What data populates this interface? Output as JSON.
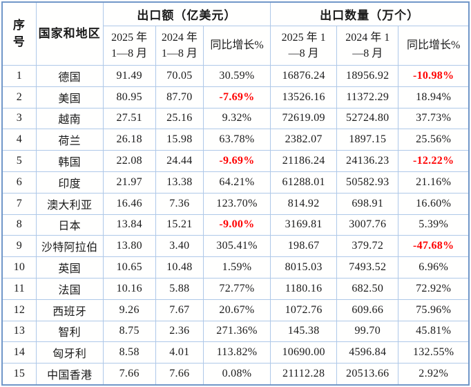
{
  "colors": {
    "outer_border": "#7096C8",
    "inner_border": "#AEC8E8",
    "text": "#1a1a1a",
    "negative_value": "#FF0000",
    "background": "#ffffff"
  },
  "chart_data": {
    "type": "table",
    "title": "",
    "header": {
      "serial": "序\n号",
      "country": "国家和地区",
      "group_export_value": "出口额（亿美元）",
      "group_export_quantity": "出口数量（万个）",
      "sub_value_2025": "2025 年\n1—8 月",
      "sub_value_2024": "2024 年\n1—8 月",
      "sub_value_growth": "同比增长%",
      "sub_qty_2025": "2025 年 1\n—8 月",
      "sub_qty_2024": "2024 年 1\n—8 月",
      "sub_qty_growth": "同比增长%"
    },
    "rows": [
      {
        "cells": [
          "1",
          "德国",
          "91.49",
          "70.05",
          "30.59%",
          "16876.24",
          "18956.92",
          "-10.98%"
        ]
      },
      {
        "cells": [
          "2",
          "美国",
          "80.95",
          "87.70",
          "-7.69%",
          "13526.16",
          "11372.29",
          "18.94%"
        ]
      },
      {
        "cells": [
          "3",
          "越南",
          "27.51",
          "25.16",
          "9.32%",
          "72619.09",
          "52724.80",
          "37.73%"
        ]
      },
      {
        "cells": [
          "4",
          "荷兰",
          "26.18",
          "15.98",
          "63.78%",
          "2382.07",
          "1897.15",
          "25.56%"
        ]
      },
      {
        "cells": [
          "5",
          "韩国",
          "22.08",
          "24.44",
          "-9.69%",
          "21186.24",
          "24136.23",
          "-12.22%"
        ]
      },
      {
        "cells": [
          "6",
          "印度",
          "21.97",
          "13.38",
          "64.21%",
          "61288.01",
          "50582.93",
          "21.16%"
        ]
      },
      {
        "cells": [
          "7",
          "澳大利亚",
          "16.46",
          "7.36",
          "123.70%",
          "814.92",
          "698.91",
          "16.60%"
        ]
      },
      {
        "cells": [
          "8",
          "日本",
          "13.84",
          "15.21",
          "-9.00%",
          "3169.81",
          "3007.76",
          "5.39%"
        ]
      },
      {
        "cells": [
          "9",
          "沙特阿拉伯",
          "13.80",
          "3.40",
          "305.41%",
          "198.67",
          "379.72",
          "-47.68%"
        ]
      },
      {
        "cells": [
          "10",
          "英国",
          "10.65",
          "10.48",
          "1.59%",
          "8015.03",
          "7493.52",
          "6.96%"
        ]
      },
      {
        "cells": [
          "11",
          "法国",
          "10.16",
          "5.88",
          "72.77%",
          "1180.16",
          "682.50",
          "72.92%"
        ]
      },
      {
        "cells": [
          "12",
          "西班牙",
          "9.26",
          "7.67",
          "20.67%",
          "1072.76",
          "609.66",
          "75.96%"
        ]
      },
      {
        "cells": [
          "13",
          "智利",
          "8.75",
          "2.36",
          "271.36%",
          "145.38",
          "99.70",
          "45.81%"
        ]
      },
      {
        "cells": [
          "14",
          "匈牙利",
          "8.58",
          "4.01",
          "113.82%",
          "10690.00",
          "4596.84",
          "132.55%"
        ]
      },
      {
        "cells": [
          "15",
          "中国香港",
          "7.66",
          "7.66",
          "0.08%",
          "21112.28",
          "20513.66",
          "2.92%"
        ]
      }
    ]
  }
}
